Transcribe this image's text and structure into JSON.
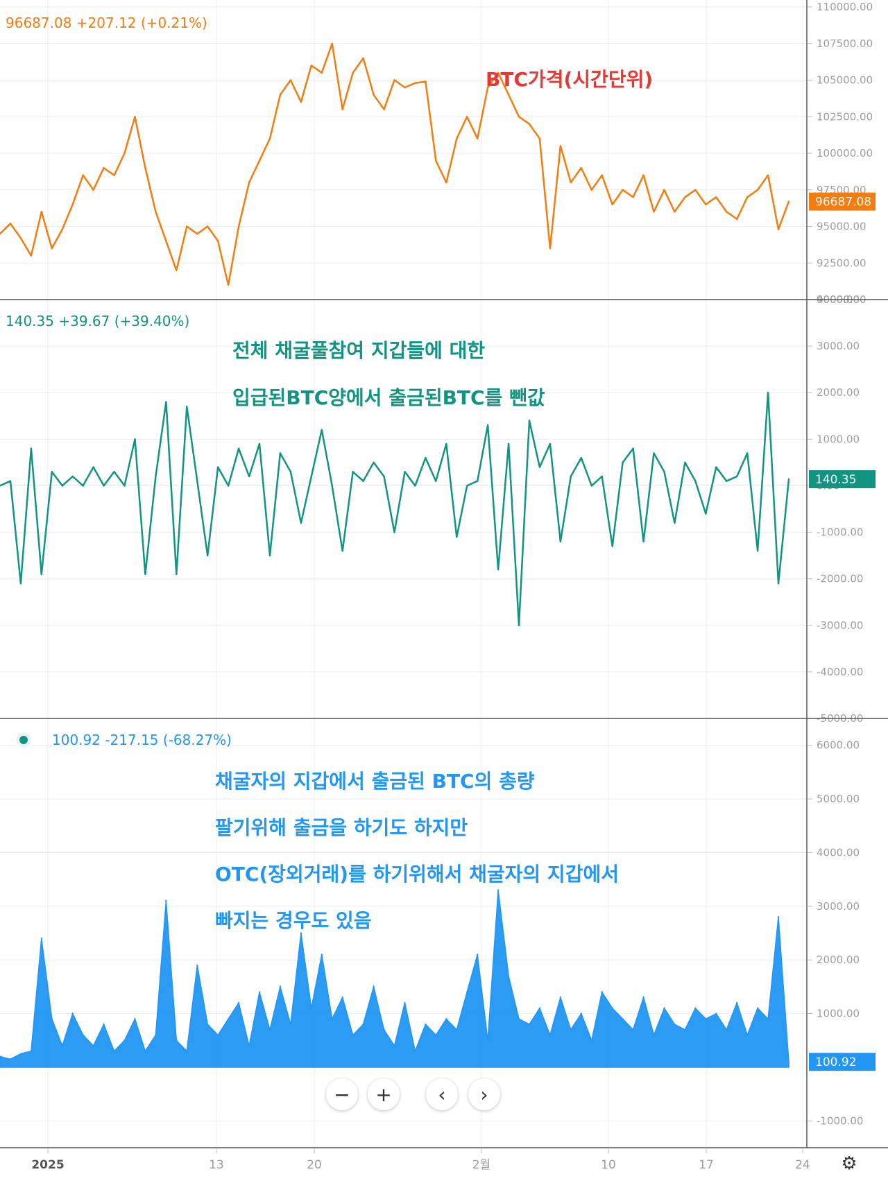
{
  "colors": {
    "price": "#f57c0e",
    "netflow": "#119482",
    "outflow": "#2196f3",
    "price_anno": "#e53935",
    "grid": "#ececec",
    "axis_text": "#9e9e9e"
  },
  "panels": {
    "price": {
      "header": {
        "value": "96687.08",
        "change": "+207.12",
        "pct": "(+0.21%)"
      },
      "last_badge": "96687.08",
      "annotation": [
        "BTC가격(시간단위)"
      ]
    },
    "netflow": {
      "header": {
        "value": "140.35",
        "change": "+39.67",
        "pct": "(+39.40%)"
      },
      "last_badge": "140.35",
      "annotation": [
        "전체 채굴풀참여 지갑들에 대한",
        "입급된BTC양에서 출금된BTC를 뺀값"
      ]
    },
    "outflow": {
      "header": {
        "value": "100.92",
        "change": "-217.15",
        "pct": "(-68.27%)"
      },
      "last_badge": "100.92",
      "annotation": [
        "채굴자의 지갑에서 출금된 BTC의 총량",
        "팔기위해 출금을 하기도 하지만",
        "OTC(장외거래)를 하기위해서 채굴자의 지갑에서",
        "빠지는 경우도 있음"
      ]
    }
  },
  "x_axis": {
    "labels": [
      "2025",
      "13",
      "20",
      "2월",
      "10",
      "17",
      "24"
    ]
  },
  "nav": {
    "zoom_out": "−",
    "zoom_in": "+",
    "prev": "‹",
    "next": "›"
  },
  "chart_data": [
    {
      "type": "line",
      "series": [
        {
          "name": "",
          "values": [
            94500,
            95200,
            94200,
            93000,
            96000,
            93500,
            94800,
            96500,
            98500,
            97500,
            99000,
            98500,
            100000,
            102500,
            99000,
            96000,
            94000,
            92000,
            95000,
            94500,
            95000,
            94000,
            91000,
            95000,
            98000,
            99500,
            101000,
            104000,
            105000,
            103500,
            106000,
            105500,
            107500,
            103000,
            105500,
            106500,
            104000,
            103000,
            105000,
            104500,
            104800,
            104900,
            99500,
            98000,
            101000,
            102500,
            101000,
            104500,
            105500,
            104000,
            102500,
            102000,
            101000,
            93500,
            100500,
            98000,
            99000,
            97500,
            98500,
            96500,
            97500,
            97000,
            98500,
            96000,
            97500,
            96000,
            97000,
            97500,
            96500,
            97000,
            96000,
            95500,
            97000,
            97500,
            98500,
            94800,
            96700
          ]
        }
      ],
      "ylim": [
        90000,
        110000
      ],
      "yticks": [
        90000,
        92500,
        95000,
        97500,
        100000,
        102500,
        105000,
        107500,
        110000
      ]
    },
    {
      "type": "line",
      "series": [
        {
          "name": "",
          "values": [
            0,
            100,
            -2100,
            800,
            -1900,
            300,
            0,
            200,
            0,
            400,
            0,
            300,
            0,
            1000,
            -1900,
            200,
            1800,
            -1900,
            1700,
            100,
            -1500,
            400,
            0,
            800,
            200,
            900,
            -1500,
            700,
            300,
            -800,
            200,
            1200,
            0,
            -1400,
            300,
            100,
            500,
            200,
            -1000,
            300,
            0,
            600,
            100,
            900,
            -1100,
            0,
            100,
            1300,
            -1800,
            900,
            -3000,
            1400,
            400,
            900,
            -1200,
            200,
            600,
            0,
            200,
            -1300,
            500,
            800,
            -1200,
            700,
            300,
            -800,
            500,
            100,
            -600,
            400,
            100,
            200,
            700,
            -1400,
            2000,
            -2100,
            140
          ]
        }
      ],
      "ylim": [
        -5000,
        4000
      ],
      "yticks": [
        -5000,
        -4000,
        -3000,
        -2000,
        -1000,
        0,
        1000,
        2000,
        3000,
        4000
      ]
    },
    {
      "type": "area",
      "series": [
        {
          "name": "",
          "values": [
            200,
            150,
            250,
            300,
            2400,
            900,
            400,
            1000,
            600,
            400,
            800,
            300,
            500,
            900,
            300,
            600,
            3100,
            500,
            300,
            1900,
            800,
            600,
            900,
            1200,
            400,
            1400,
            700,
            1500,
            800,
            2500,
            1100,
            2100,
            900,
            1300,
            600,
            800,
            1500,
            700,
            400,
            1200,
            300,
            800,
            600,
            900,
            700,
            1400,
            2100,
            500,
            3300,
            1700,
            900,
            800,
            1100,
            600,
            1300,
            700,
            1000,
            500,
            1400,
            1100,
            900,
            700,
            1300,
            600,
            1100,
            800,
            700,
            1100,
            900,
            1000,
            700,
            1200,
            600,
            1100,
            900,
            2800,
            100
          ]
        }
      ],
      "ylim": [
        -1500,
        6500
      ],
      "yticks": [
        -1000,
        1000,
        2000,
        3000,
        4000,
        5000,
        6000
      ]
    }
  ]
}
